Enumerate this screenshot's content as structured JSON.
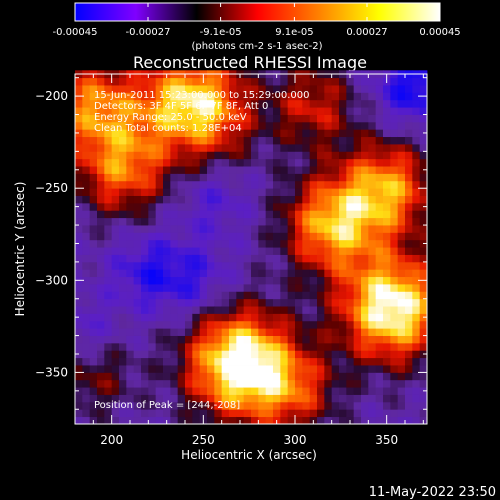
{
  "chart_data": {
    "type": "heatmap",
    "title": "Reconstructed RHESSI Image",
    "xlabel": "Heliocentric X (arcsec)",
    "ylabel": "Heliocentric Y (arcsec)",
    "xlim": [
      180,
      372
    ],
    "ylim": [
      -378,
      -188
    ],
    "x_ticks": [
      200,
      250,
      300,
      350
    ],
    "y_ticks": [
      -200,
      -250,
      -300,
      -350
    ],
    "colorbar": {
      "range": [
        -0.00045,
        0.00045
      ],
      "ticks": [
        "-0.00045",
        "-0.00027",
        "-9.1e-05",
        "9.1e-05",
        "0.00027",
        "0.00045"
      ],
      "unit_label": "(photons cm-2 s-1 asec-2)",
      "colors": [
        "#0000ff",
        "#8000ff",
        "#000000",
        "#ff0000",
        "#ff8000",
        "#ffff00",
        "#ffffff"
      ]
    },
    "annotations": [
      "15-Jun-2011 15:23:00.000 to 15:29:00.000",
      "Detectors: 3F 4F 5F 6F 7F 8F, Att 0",
      "Energy Range: 25.0 - 50.0 keV",
      "Clean     Total counts: 1.28E+04"
    ],
    "peak_label": "Position of Peak = [244,-208]",
    "bright_sources": [
      {
        "x": 270,
        "y": -345,
        "level": 1.0
      },
      {
        "x": 353,
        "y": -315,
        "level": 0.95
      },
      {
        "x": 244,
        "y": -208,
        "level": 1.0
      },
      {
        "x": 320,
        "y": -270,
        "level": 0.7
      },
      {
        "x": 350,
        "y": -250,
        "level": 0.65
      },
      {
        "x": 190,
        "y": -205,
        "level": 0.6
      },
      {
        "x": 205,
        "y": -240,
        "level": 0.55
      },
      {
        "x": 310,
        "y": -205,
        "level": 0.4
      },
      {
        "x": 300,
        "y": -360,
        "level": 0.4
      },
      {
        "x": 190,
        "y": -350,
        "level": 0.3
      }
    ],
    "dark_sources": [
      {
        "x": 365,
        "y": -195,
        "level": 1.0
      },
      {
        "x": 220,
        "y": -295,
        "level": 0.7
      },
      {
        "x": 255,
        "y": -255,
        "level": 0.5
      },
      {
        "x": 240,
        "y": -220,
        "level": 0.5
      },
      {
        "x": 185,
        "y": -330,
        "level": 0.5
      },
      {
        "x": 245,
        "y": -300,
        "level": 0.6
      }
    ]
  },
  "footer": {
    "date": "11-May-2022 23:50"
  }
}
